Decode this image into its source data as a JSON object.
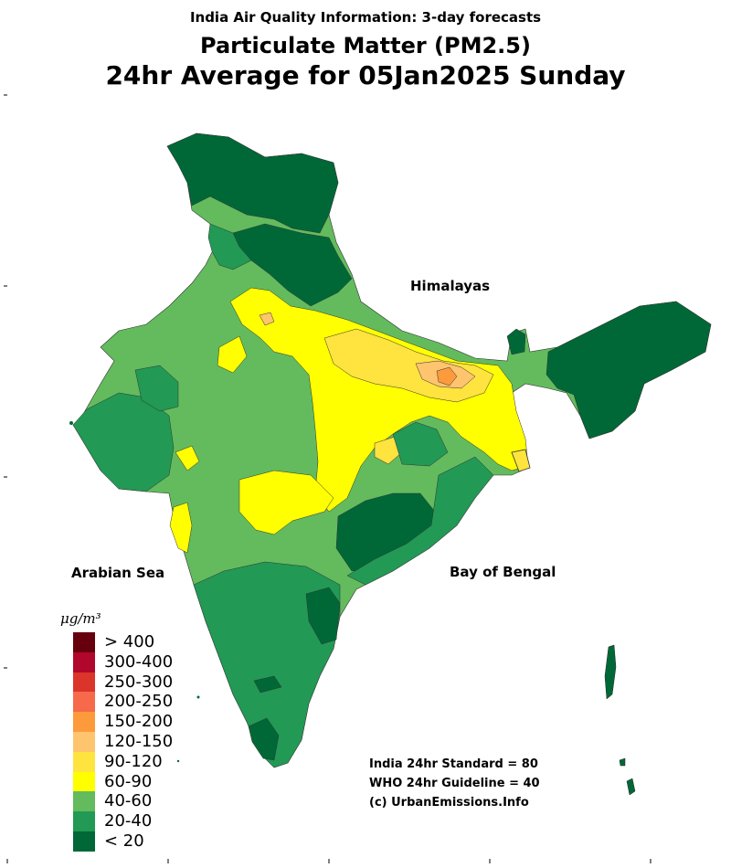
{
  "header": {
    "supertitle": "India Air Quality Information: 3-day forecasts",
    "title": "Particulate Matter (PM2.5)",
    "subtitle": "24hr Average for 05Jan2025 Sunday"
  },
  "labels": {
    "himalayas": "Himalayas",
    "arabian_sea": "Arabian Sea",
    "bay_of_bengal": "Bay of Bengal"
  },
  "legend": {
    "unit": "μg/m³",
    "items": [
      {
        "label": "> 400",
        "color": "#67000d"
      },
      {
        "label": "300-400",
        "color": "#b2072c"
      },
      {
        "label": "250-300",
        "color": "#db342b"
      },
      {
        "label": "200-250",
        "color": "#f6694a"
      },
      {
        "label": "150-200",
        "color": "#fd9a3c"
      },
      {
        "label": "120-150",
        "color": "#fec46e"
      },
      {
        "label": "90-120",
        "color": "#ffe33f"
      },
      {
        "label": "60-90",
        "color": "#ffff00"
      },
      {
        "label": "40-60",
        "color": "#63bb5d"
      },
      {
        "label": "20-40",
        "color": "#229954"
      },
      {
        "label": "< 20",
        "color": "#006837"
      }
    ]
  },
  "notes": {
    "standard": "India 24hr Standard = 80",
    "who": "WHO 24hr Guideline = 40",
    "credit": "(c) UrbanEmissions.Info"
  }
}
